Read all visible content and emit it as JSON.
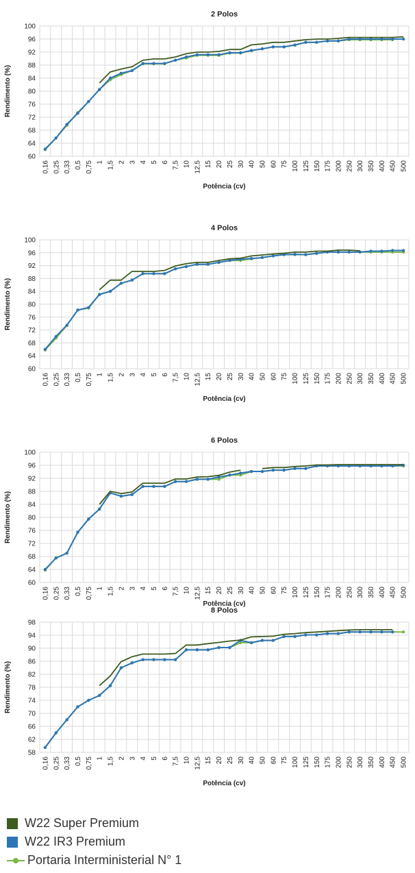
{
  "colors": {
    "super_premium": "#3e5b20",
    "ir3_premium": "#2e75b6",
    "portaria": "#7ab648",
    "grid": "#d9d9d9"
  },
  "legend": [
    {
      "label": "W22 Super Premium",
      "style": "square",
      "color": "#3e5b20"
    },
    {
      "label": "W22 IR3 Premium",
      "style": "square",
      "color": "#2e75b6"
    },
    {
      "label": "Portaria Interministerial N° 1",
      "style": "line-dot",
      "color": "#7ab648"
    }
  ],
  "chart_data": [
    {
      "type": "line",
      "title": "2 Polos",
      "xlabel": "Potência (cv)",
      "ylabel": "Rendimento (%)",
      "ylim": [
        60,
        100
      ],
      "yticks": [
        60,
        64,
        68,
        72,
        76,
        80,
        84,
        88,
        92,
        96,
        100
      ],
      "categories": [
        "0,16",
        "0,25",
        "0,33",
        "0,5",
        "0,75",
        "1",
        "1,5",
        "2",
        "3",
        "4",
        "5",
        "6",
        "7,5",
        "10",
        "12,5",
        "15",
        "20",
        "25",
        "30",
        "40",
        "50",
        "60",
        "75",
        "100",
        "125",
        "150",
        "175",
        "200",
        "250",
        "300",
        "350",
        "400",
        "450",
        "500"
      ],
      "grid": true,
      "series": [
        {
          "name": "W22 Super Premium",
          "color": "#3e5b20",
          "markers": false,
          "values": [
            null,
            null,
            null,
            null,
            null,
            82.5,
            85.9,
            86.8,
            87.5,
            89.5,
            89.9,
            89.9,
            90.5,
            91.5,
            92.0,
            92.0,
            92.2,
            92.8,
            92.8,
            94.2,
            94.5,
            95.0,
            95.0,
            95.4,
            95.8,
            96.0,
            96.0,
            96.2,
            96.5,
            96.5,
            96.5,
            96.5,
            96.5,
            96.7
          ]
        },
        {
          "name": "W22 IR3 Premium",
          "color": "#2e75b6",
          "markers": true,
          "values": [
            62.2,
            65.6,
            69.8,
            73.2,
            76.8,
            80.5,
            84.0,
            85.5,
            86.3,
            88.5,
            88.5,
            88.5,
            89.5,
            90.5,
            91.2,
            91.2,
            91.2,
            91.8,
            91.8,
            92.5,
            93.0,
            93.6,
            93.6,
            94.2,
            95.0,
            95.0,
            95.4,
            95.4,
            96.0,
            96.0,
            96.0,
            96.0,
            96.0,
            96.0
          ]
        },
        {
          "name": "Portaria Interministerial N° 1",
          "color": "#7ab648",
          "markers": true,
          "values": [
            62.0,
            65.6,
            69.5,
            73.4,
            76.8,
            80.5,
            83.5,
            85.1,
            86.3,
            88.4,
            88.4,
            88.4,
            89.5,
            90.2,
            91.0,
            91.0,
            91.0,
            91.7,
            91.7,
            92.4,
            93.0,
            93.6,
            93.6,
            94.1,
            95.0,
            95.0,
            95.4,
            95.4,
            95.8,
            95.8,
            95.8,
            95.8,
            95.8,
            null
          ]
        }
      ]
    },
    {
      "type": "line",
      "title": "4 Polos",
      "xlabel": "Potência (cv)",
      "ylabel": "Rendimento (%)",
      "ylim": [
        60,
        100
      ],
      "yticks": [
        60,
        64,
        68,
        72,
        76,
        80,
        84,
        88,
        92,
        96,
        100
      ],
      "categories": [
        "0,16",
        "0,25",
        "0,33",
        "0,5",
        "0,75",
        "1",
        "1,5",
        "2",
        "3",
        "4",
        "5",
        "6",
        "7,5",
        "10",
        "12,5",
        "15",
        "20",
        "25",
        "30",
        "40",
        "50",
        "60",
        "75",
        "100",
        "125",
        "150",
        "175",
        "200",
        "250",
        "300",
        "350",
        "400",
        "450",
        "500"
      ],
      "grid": true,
      "series": [
        {
          "name": "W22 Super Premium",
          "color": "#3e5b20",
          "markers": false,
          "values": [
            null,
            null,
            null,
            null,
            null,
            84.5,
            87.5,
            87.5,
            90.2,
            90.2,
            90.2,
            90.5,
            91.9,
            92.6,
            93.0,
            93.0,
            93.6,
            94.1,
            94.3,
            95.0,
            95.3,
            95.6,
            95.8,
            96.2,
            96.2,
            96.5,
            96.5,
            96.8,
            96.8,
            96.6,
            null,
            null,
            null,
            null
          ]
        },
        {
          "name": "W22 IR3 Premium",
          "color": "#2e75b6",
          "markers": true,
          "values": [
            66.0,
            70.0,
            73.5,
            78.2,
            79.0,
            83.0,
            84.0,
            86.5,
            87.5,
            89.5,
            89.5,
            89.5,
            91.0,
            91.7,
            92.4,
            92.4,
            93.0,
            93.6,
            94.0,
            94.2,
            94.5,
            95.0,
            95.4,
            95.5,
            95.4,
            95.8,
            96.2,
            96.2,
            96.2,
            96.2,
            96.5,
            96.5,
            96.7,
            96.7
          ]
        },
        {
          "name": "Portaria Interministerial N° 1",
          "color": "#7ab648",
          "markers": true,
          "values": [
            65.8,
            69.5,
            73.4,
            78.2,
            78.8,
            83.1,
            84.0,
            86.5,
            87.5,
            89.5,
            89.5,
            89.5,
            91.0,
            91.7,
            92.4,
            92.4,
            93.0,
            93.6,
            93.6,
            94.1,
            94.5,
            95.0,
            95.4,
            95.4,
            95.4,
            95.8,
            96.2,
            96.2,
            96.2,
            96.2,
            96.2,
            96.2,
            96.2,
            96.2
          ]
        }
      ]
    },
    {
      "type": "line",
      "title": "6 Polos",
      "xlabel": "Potência (cv)",
      "ylabel": "Rendimento (%)",
      "ylim": [
        60,
        100
      ],
      "yticks": [
        60,
        64,
        68,
        72,
        76,
        80,
        84,
        88,
        92,
        96,
        100
      ],
      "categories": [
        "0,16",
        "0,25",
        "0,33",
        "0,5",
        "0,75",
        "1",
        "1,5",
        "2",
        "3",
        "4",
        "5",
        "6",
        "7,5",
        "10",
        "12,5",
        "15",
        "20",
        "25",
        "30",
        "40",
        "50",
        "60",
        "75",
        "100",
        "125",
        "150",
        "175",
        "200",
        "250",
        "300",
        "350",
        "400",
        "450",
        "500"
      ],
      "grid": true,
      "series": [
        {
          "name": "W22 Super Premium",
          "color": "#3e5b20",
          "markers": false,
          "values": [
            null,
            null,
            null,
            null,
            null,
            84.0,
            88.0,
            87.3,
            87.8,
            90.5,
            90.5,
            90.5,
            91.8,
            91.8,
            92.4,
            92.5,
            92.9,
            93.9,
            94.5,
            null,
            95.0,
            95.3,
            95.3,
            95.6,
            95.8,
            96.1,
            96.1,
            96.2,
            96.2,
            96.2,
            96.2,
            96.2,
            96.2,
            96.2
          ]
        },
        {
          "name": "W22 IR3 Premium",
          "color": "#2e75b6",
          "markers": true,
          "values": [
            64.0,
            67.5,
            69.0,
            75.4,
            79.5,
            82.5,
            87.5,
            86.5,
            87.0,
            89.5,
            89.5,
            89.5,
            91.0,
            91.0,
            91.7,
            91.7,
            92.4,
            93.0,
            93.6,
            94.1,
            94.1,
            94.5,
            94.5,
            95.0,
            95.0,
            95.8,
            95.8,
            95.8,
            95.8,
            95.8,
            95.8,
            95.8,
            95.8,
            96.0
          ]
        },
        {
          "name": "Portaria Interministerial N° 1",
          "color": "#7ab648",
          "markers": true,
          "values": [
            63.8,
            67.6,
            69.0,
            75.4,
            79.4,
            82.6,
            87.5,
            86.5,
            87.0,
            89.5,
            89.5,
            89.5,
            91.0,
            91.0,
            91.7,
            91.7,
            91.7,
            93.0,
            93.0,
            94.1,
            94.1,
            94.5,
            94.5,
            95.0,
            95.0,
            95.8,
            95.8,
            95.8,
            95.8,
            95.8,
            95.8,
            95.8,
            95.8,
            95.8
          ]
        }
      ]
    },
    {
      "type": "line",
      "title": "8 Polos",
      "xlabel": "Potência (cv)",
      "ylabel": "Rendimento (%)",
      "ylim": [
        58,
        98
      ],
      "yticks": [
        58,
        62,
        66,
        70,
        74,
        78,
        82,
        86,
        90,
        94,
        98
      ],
      "categories": [
        "0,16",
        "0,25",
        "0,33",
        "0,5",
        "0,75",
        "1",
        "1,5",
        "2",
        "3",
        "4",
        "5",
        "6",
        "7,5",
        "10",
        "12,5",
        "15",
        "20",
        "25",
        "30",
        "40",
        "50",
        "60",
        "75",
        "100",
        "125",
        "150",
        "175",
        "200",
        "250",
        "300",
        "350",
        "400",
        "450",
        "500"
      ],
      "grid": true,
      "series": [
        {
          "name": "W22 Super Premium",
          "color": "#3e5b20",
          "markers": false,
          "values": [
            null,
            null,
            null,
            null,
            null,
            78.5,
            81.5,
            85.9,
            87.4,
            88.2,
            88.2,
            88.2,
            88.4,
            91.0,
            91.0,
            91.4,
            91.8,
            92.2,
            92.5,
            93.5,
            93.6,
            93.7,
            94.3,
            94.5,
            94.8,
            95.0,
            95.2,
            95.4,
            95.6,
            95.7,
            95.7,
            95.7,
            95.7,
            null
          ]
        },
        {
          "name": "W22 IR3 Premium",
          "color": "#2e75b6",
          "markers": true,
          "values": [
            59.5,
            64.0,
            68.0,
            72.0,
            74.0,
            75.5,
            78.5,
            84.0,
            85.5,
            86.5,
            86.5,
            86.5,
            86.5,
            89.5,
            89.5,
            89.5,
            90.2,
            90.2,
            92.4,
            91.7,
            92.4,
            92.4,
            93.6,
            93.6,
            94.1,
            94.1,
            94.5,
            94.5,
            95.0,
            95.0,
            95.0,
            95.0,
            95.0,
            null
          ]
        },
        {
          "name": "Portaria Interministerial N° 1",
          "color": "#7ab648",
          "markers": true,
          "values": [
            59.5,
            64.0,
            68.0,
            72.0,
            74.0,
            75.5,
            78.5,
            84.0,
            85.5,
            86.5,
            86.5,
            86.5,
            86.5,
            89.5,
            89.5,
            89.5,
            90.2,
            90.2,
            91.7,
            91.7,
            92.4,
            92.4,
            93.6,
            93.6,
            94.1,
            94.1,
            94.5,
            94.5,
            95.0,
            95.0,
            95.0,
            95.0,
            95.0,
            95.0
          ]
        }
      ]
    }
  ]
}
